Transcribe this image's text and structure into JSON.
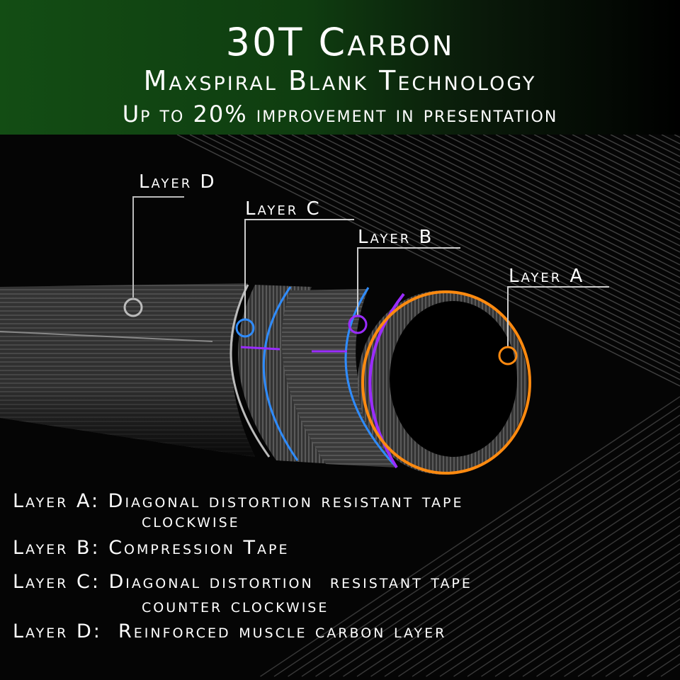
{
  "header": {
    "title": "30T Carbon",
    "subtitle": "Maxspiral Blank Technology",
    "tagline": "Up to 20% improvement in presentation"
  },
  "callouts": [
    {
      "label": "Layer D",
      "color": "#bbbbbb"
    },
    {
      "label": "Layer C",
      "color": "#2f8cff"
    },
    {
      "label": "Layer B",
      "color": "#9a2cff"
    },
    {
      "label": "Layer A",
      "color": "#ff8a10"
    }
  ],
  "descriptions": [
    {
      "key": "Layer A:",
      "text": "Diagonal distortion resistant tape",
      "cont": "clockwise"
    },
    {
      "key": "Layer B:",
      "text": "Compression Tape"
    },
    {
      "key": "Layer C:",
      "text": "Diagonal distortion  resistant tape",
      "cont": "counter clockwise"
    },
    {
      "key": "Layer D:",
      "text": " Reinforced muscle carbon layer"
    }
  ]
}
